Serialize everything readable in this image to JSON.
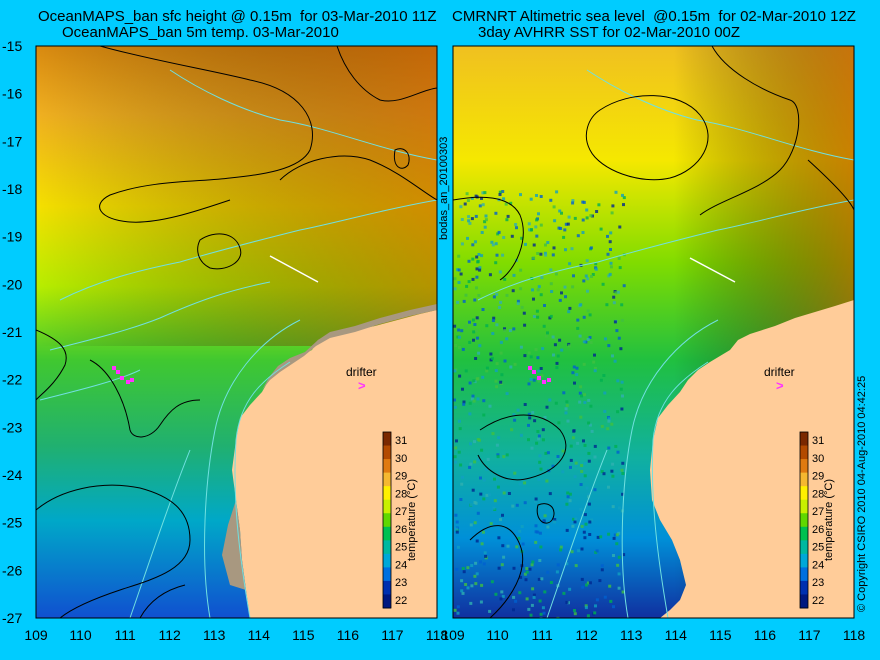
{
  "left_panel": {
    "title_line1": "OceanMAPS_ban sfc height @ 0.15m  for 03-Mar-2010 11Z",
    "title_line2": "OceanMAPS_ban 5m temp. 03-Mar-2010"
  },
  "right_panel": {
    "title_line1": "CMRNRT Altimetric sea level  @0.15m  for 02-Mar-2010 12Z",
    "title_line2": "3day AVHRR SST for 02-Mar-2010 00Z"
  },
  "axes": {
    "lat_ticks": [
      "-15",
      "-16",
      "-17",
      "-18",
      "-19",
      "-20",
      "-21",
      "-22",
      "-23",
      "-24",
      "-25",
      "-26",
      "-27"
    ],
    "lon_ticks_left": [
      "109",
      "110",
      "111",
      "112",
      "113",
      "114",
      "115",
      "116",
      "117",
      "118"
    ],
    "lon_ticks_right": [
      "109",
      "110",
      "111",
      "112",
      "113",
      "114",
      "115",
      "116",
      "117",
      "118"
    ]
  },
  "colorbar": {
    "label": "temperature (°C)",
    "ticks": [
      "31",
      "30",
      "29",
      "28",
      "27",
      "26",
      "25",
      "24",
      "23",
      "22"
    ],
    "colors": [
      "#7a2800",
      "#b34a00",
      "#e07a10",
      "#f5b830",
      "#fff000",
      "#c8f000",
      "#60d800",
      "#00c050",
      "#00b8a0",
      "#00a8d8",
      "#0070e0",
      "#0030b0",
      "#001880"
    ]
  },
  "annotations": {
    "drifter_label": "drifter",
    "vertical_id": "bodas_an_20100303",
    "copyright": "© Copyright CSIRO 2010  04-Aug-2010 04:42:25"
  },
  "colors": {
    "background": "#00ccff",
    "land": "#ffcc99",
    "marker": "#ff33ff"
  }
}
